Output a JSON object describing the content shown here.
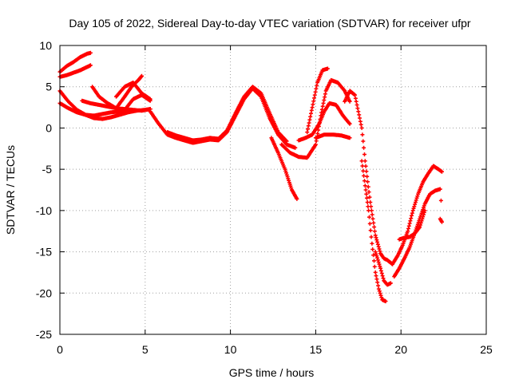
{
  "chart_data": {
    "type": "scatter",
    "title": "Day 105 of 2022, Sidereal Day-to-day VTEC variation (SDTVAR) for receiver ufpr",
    "xlabel": "GPS time / hours",
    "ylabel": "SDTVAR / TECUs",
    "xlim": [
      0,
      25
    ],
    "ylim": [
      -25,
      10
    ],
    "xticks": [
      "0",
      "5",
      "10",
      "15",
      "20",
      "25"
    ],
    "yticks": [
      "-25",
      "-20",
      "-15",
      "-10",
      "-5",
      "0",
      "5",
      "10"
    ],
    "grid": true,
    "marker": "+",
    "colors": {
      "series": "#ff0000",
      "grid": "#a0a0a0",
      "axis": "#000000"
    },
    "series": [
      {
        "x": [
          0.0,
          0.4,
          0.8,
          1.2,
          1.6,
          1.8
        ],
        "y": [
          6.8,
          7.5,
          8.0,
          8.6,
          9.0,
          9.1
        ]
      },
      {
        "x": [
          0.0,
          0.4,
          0.8,
          1.2,
          1.6,
          1.8
        ],
        "y": [
          6.2,
          6.4,
          6.7,
          7.0,
          7.4,
          7.6
        ]
      },
      {
        "x": [
          0.0,
          0.5,
          1.0,
          1.5,
          2.0,
          2.5,
          3.0,
          3.5,
          4.0,
          4.5,
          5.0,
          5.3
        ],
        "y": [
          4.5,
          3.2,
          2.2,
          1.6,
          1.2,
          1.1,
          1.3,
          1.6,
          1.9,
          2.1,
          2.2,
          2.3
        ]
      },
      {
        "x": [
          0.0,
          0.5,
          1.0,
          1.5,
          2.0,
          2.5,
          3.0,
          3.5,
          4.0
        ],
        "y": [
          3.0,
          2.4,
          1.9,
          1.6,
          1.5,
          1.7,
          1.9,
          2.0,
          2.2
        ]
      },
      {
        "x": [
          1.3,
          1.8,
          2.3,
          2.8,
          3.3,
          3.8,
          4.3,
          4.8,
          5.3
        ],
        "y": [
          3.3,
          3.0,
          2.8,
          2.6,
          2.4,
          2.3,
          2.2,
          2.1,
          2.3
        ]
      },
      {
        "x": [
          1.9,
          2.3,
          2.8,
          3.3,
          3.8,
          4.2,
          4.6,
          4.8
        ],
        "y": [
          5.0,
          3.8,
          3.0,
          2.4,
          3.8,
          5.0,
          5.8,
          6.3
        ]
      },
      {
        "x": [
          3.3,
          3.8,
          4.3,
          4.8,
          5.3
        ],
        "y": [
          3.8,
          5.0,
          5.5,
          4.2,
          3.5
        ]
      },
      {
        "x": [
          3.8,
          4.3,
          4.8,
          5.3
        ],
        "y": [
          2.2,
          3.5,
          4.0,
          3.3
        ]
      },
      {
        "x": [
          5.3,
          5.8,
          6.3,
          6.8,
          7.3,
          7.8,
          8.3,
          8.8,
          9.3,
          9.8,
          10.3,
          10.8,
          11.3,
          11.8,
          12.3,
          12.8,
          13.3,
          13.8
        ],
        "y": [
          2.0,
          0.5,
          -0.8,
          -1.2,
          -1.5,
          -1.8,
          -1.6,
          -1.4,
          -1.5,
          -0.5,
          1.5,
          3.5,
          4.8,
          3.8,
          1.2,
          -0.8,
          -2.0,
          -2.4
        ]
      },
      {
        "x": [
          6.3,
          6.8,
          7.3,
          7.8,
          8.3,
          8.8,
          9.3,
          9.8,
          10.3,
          10.8,
          11.3,
          11.8,
          12.3,
          12.8,
          13.3
        ],
        "y": [
          -0.5,
          -0.9,
          -1.2,
          -1.5,
          -1.4,
          -1.2,
          -1.3,
          -0.3,
          1.8,
          3.8,
          5.0,
          4.2,
          1.8,
          -0.5,
          -1.6
        ]
      },
      {
        "x": [
          12.4,
          12.8,
          13.2,
          13.6,
          13.9
        ],
        "y": [
          -1.2,
          -3.0,
          -5.0,
          -7.5,
          -8.6
        ]
      },
      {
        "x": [
          13.0,
          13.5,
          14.0,
          14.5,
          15.0,
          15.3,
          15.6,
          15.9,
          16.3,
          16.7,
          17.0
        ],
        "y": [
          -2.0,
          -3.0,
          -3.5,
          -3.6,
          -2.0,
          1.5,
          4.5,
          5.8,
          5.5,
          4.5,
          3.2
        ]
      },
      {
        "x": [
          14.0,
          14.4,
          14.8,
          15.2,
          15.5,
          15.8,
          16.2,
          16.6,
          17.0
        ],
        "y": [
          -1.5,
          -1.2,
          -0.8,
          0.5,
          2.0,
          3.0,
          2.8,
          1.5,
          0.5
        ]
      },
      {
        "x": [
          14.5,
          14.8,
          15.1,
          15.4,
          15.7
        ],
        "y": [
          -0.5,
          2.5,
          5.5,
          7.0,
          7.2
        ]
      },
      {
        "x": [
          15.0,
          15.5,
          16.0,
          16.5,
          17.0
        ],
        "y": [
          -1.2,
          -0.8,
          -0.8,
          -0.9,
          -1.2
        ]
      },
      {
        "x": [
          16.7,
          17.0,
          17.3,
          17.5,
          17.7,
          17.9,
          18.2,
          18.5,
          18.8,
          19.0,
          19.2,
          19.5
        ],
        "y": [
          3.2,
          4.5,
          4.0,
          2.0,
          0.0,
          -4.0,
          -9.0,
          -13.0,
          -15.2,
          -15.8,
          -16.0,
          -16.5
        ]
      },
      {
        "x": [
          17.7,
          17.9,
          18.1,
          18.3,
          18.5,
          18.7,
          18.9,
          19.1
        ],
        "y": [
          -4.0,
          -7.0,
          -10.0,
          -14.0,
          -17.5,
          -19.5,
          -20.8,
          -21.0
        ]
      },
      {
        "x": [
          18.5,
          18.8,
          19.0,
          19.2,
          19.4
        ],
        "y": [
          -15.0,
          -17.0,
          -18.5,
          -19.0,
          -18.8
        ]
      },
      {
        "x": [
          19.5,
          19.8,
          20.1,
          20.4,
          20.7,
          21.0,
          21.3,
          21.6,
          21.9,
          22.2,
          22.4
        ],
        "y": [
          -16.5,
          -15.5,
          -14.2,
          -12.5,
          -10.0,
          -8.0,
          -6.5,
          -5.5,
          -4.6,
          -5.0,
          -5.3
        ]
      },
      {
        "x": [
          19.6,
          19.9,
          20.2,
          20.5,
          20.8,
          21.1,
          21.4,
          21.7,
          22.0,
          22.3
        ],
        "y": [
          -18.0,
          -17.0,
          -15.8,
          -14.5,
          -12.8,
          -11.0,
          -9.2,
          -8.0,
          -7.6,
          -7.4
        ]
      },
      {
        "x": [
          19.9,
          20.2,
          20.5,
          20.8,
          21.1,
          21.4
        ],
        "y": [
          -13.5,
          -13.3,
          -13.2,
          -12.8,
          -12.0,
          -10.0
        ]
      },
      {
        "x": [
          22.3,
          22.4
        ],
        "y": [
          -11.0,
          -11.4
        ]
      },
      {
        "x": [
          22.35
        ],
        "y": [
          -8.8
        ]
      }
    ]
  }
}
